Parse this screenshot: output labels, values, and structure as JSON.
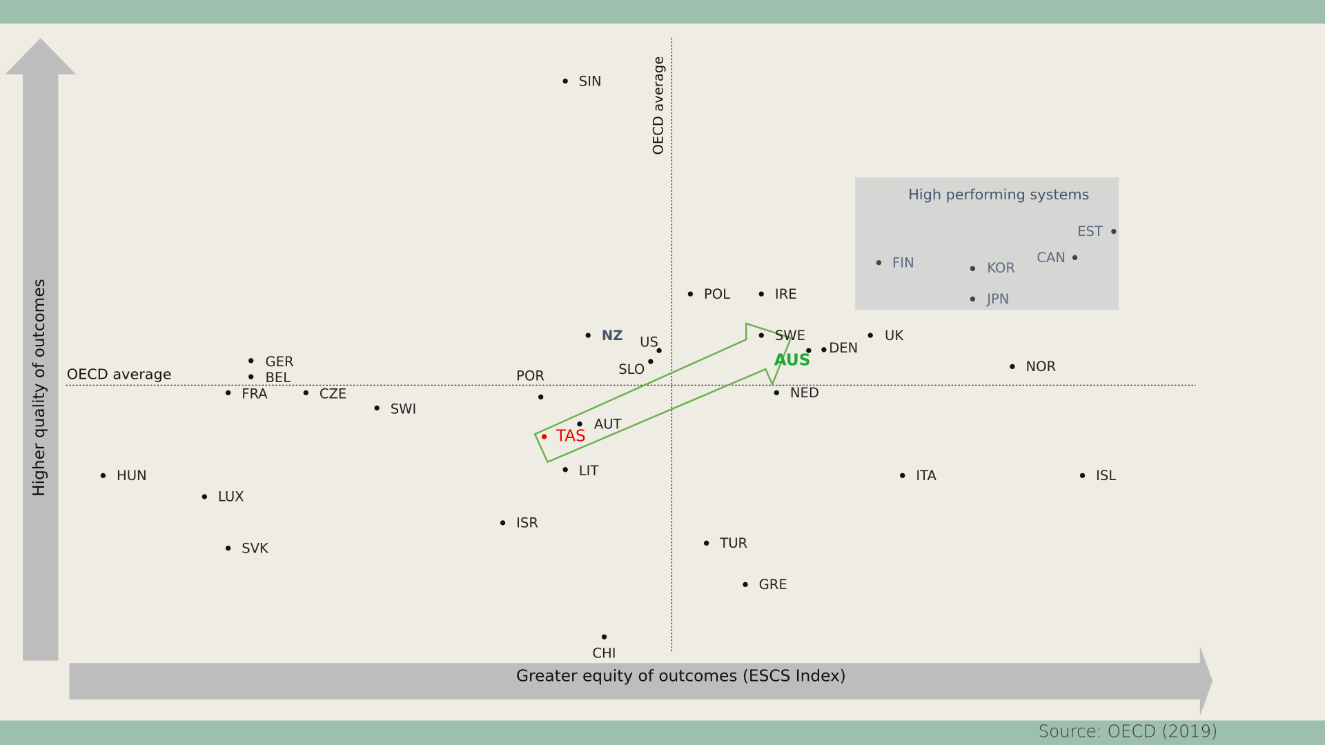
{
  "y_axis_label": "Higher quality of outcomes",
  "x_axis_label": "Greater equity of outcomes (ESCS Index)",
  "vertical_line_label": "OECD average",
  "horizontal_line_label": "OECD average",
  "box_label": "High performing systems",
  "source": "Source: OECD (2019)",
  "countries": [
    "SIN",
    "EST",
    "CAN",
    "FIN",
    "KOR",
    "JPN",
    "POL",
    "IRE",
    "NZ",
    "US",
    "SWE",
    "AUS",
    "DEN",
    "UK",
    "SLO",
    "GER",
    "BEL",
    "FRA",
    "CZE",
    "SWI",
    "POR",
    "NED",
    "NOR",
    "AUT",
    "TAS",
    "LIT",
    "HUN",
    "ITA",
    "ISL",
    "LUX",
    "ISR",
    "TUR",
    "SVK",
    "GRE",
    "CHI"
  ]
}
